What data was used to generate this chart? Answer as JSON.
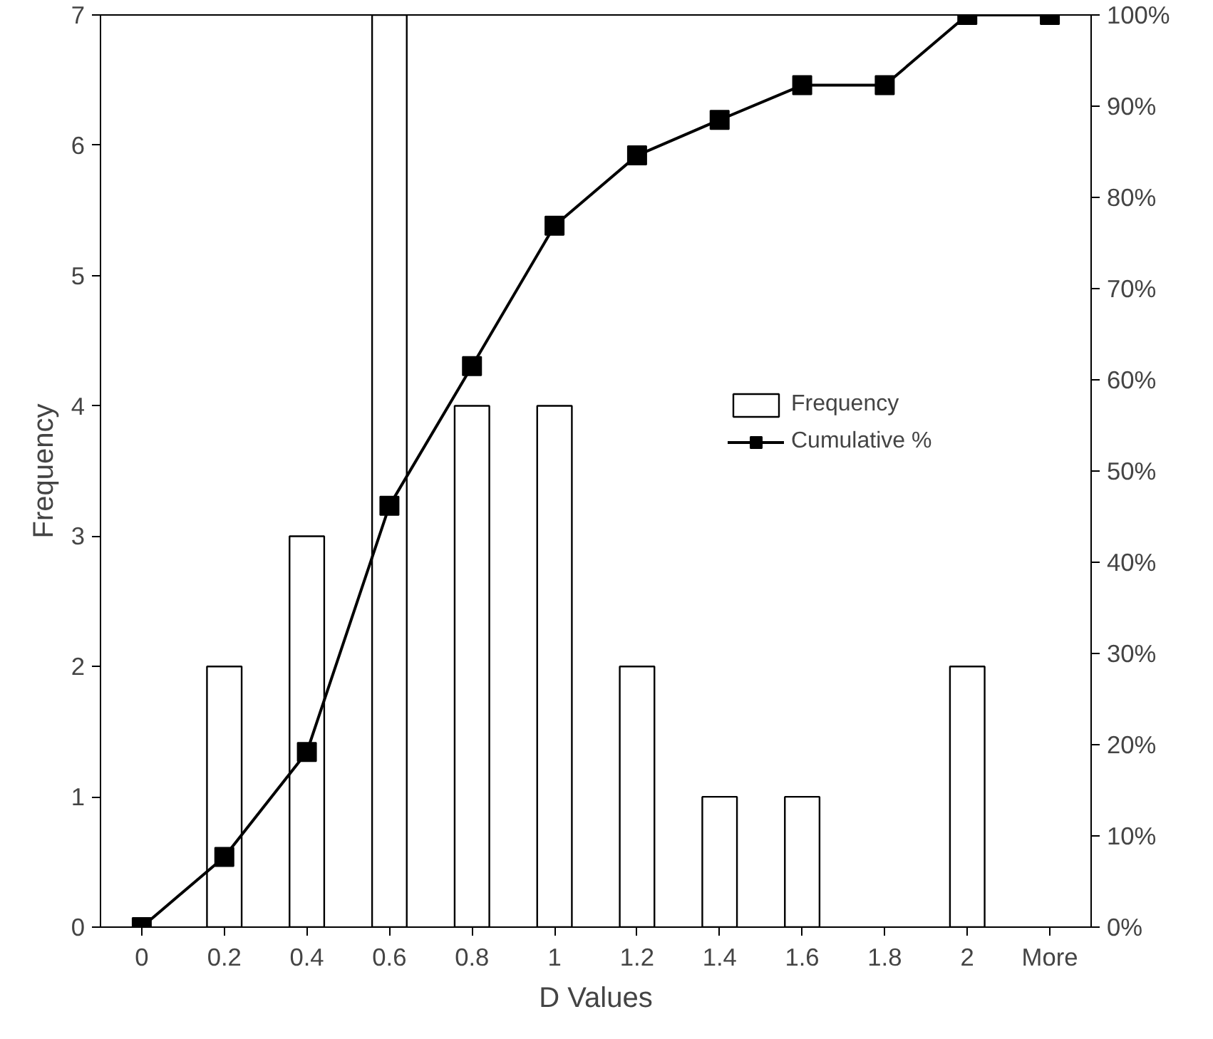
{
  "chart_data": {
    "type": "bar",
    "xlabel": "D Values",
    "ylabel": "Frequency",
    "categories": [
      "0",
      "0.2",
      "0.4",
      "0.6",
      "0.8",
      "1",
      "1.2",
      "1.4",
      "1.6",
      "1.8",
      "2",
      "More"
    ],
    "series": [
      {
        "name": "Frequency",
        "color": "#ffffff",
        "values": [
          0,
          2,
          3,
          7,
          4,
          4,
          2,
          1,
          1,
          0,
          2,
          0
        ]
      },
      {
        "name": "Cumulative %",
        "type": "line",
        "axis": "y2",
        "color": "#000000",
        "marker": "square",
        "values": [
          0,
          7.7,
          19.2,
          46.2,
          61.5,
          76.9,
          84.6,
          88.5,
          92.3,
          92.3,
          100,
          100
        ]
      }
    ],
    "ylim": [
      0,
      7
    ],
    "yticks": [
      0,
      1,
      2,
      3,
      4,
      5,
      6,
      7
    ],
    "y2lim": [
      0,
      100
    ],
    "y2ticks": [
      {
        "value": 0,
        "label": "0%"
      },
      {
        "value": 10,
        "label": "10%"
      },
      {
        "value": 20,
        "label": "20%"
      },
      {
        "value": 30,
        "label": "30%"
      },
      {
        "value": 40,
        "label": "40%"
      },
      {
        "value": 50,
        "label": "50%"
      },
      {
        "value": 60,
        "label": "60%"
      },
      {
        "value": 70,
        "label": "70%"
      },
      {
        "value": 80,
        "label": "80%"
      },
      {
        "value": 90,
        "label": "90%"
      },
      {
        "value": 100,
        "label": "100%"
      }
    ],
    "grid": false,
    "legend": "right"
  }
}
